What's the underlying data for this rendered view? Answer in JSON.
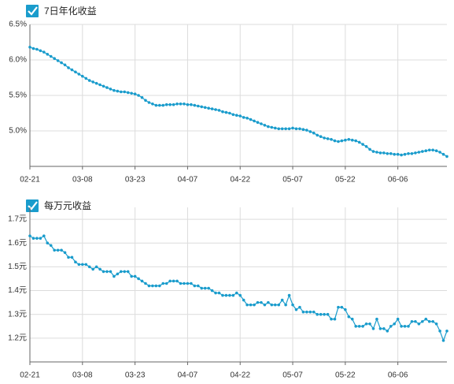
{
  "chart_data": [
    {
      "type": "line",
      "title": "7日年化收益",
      "color": "#1a9ccc",
      "grid": true,
      "categories": [
        "02-21",
        null,
        null,
        null,
        null,
        null,
        null,
        null,
        null,
        null,
        null,
        null,
        null,
        null,
        null,
        "03-08",
        null,
        null,
        null,
        null,
        null,
        null,
        null,
        null,
        null,
        null,
        null,
        null,
        null,
        null,
        "03-23",
        null,
        null,
        null,
        null,
        null,
        null,
        null,
        null,
        null,
        null,
        null,
        null,
        null,
        null,
        "04-07",
        null,
        null,
        null,
        null,
        null,
        null,
        null,
        null,
        null,
        null,
        null,
        null,
        null,
        null,
        "04-22",
        null,
        null,
        null,
        null,
        null,
        null,
        null,
        null,
        null,
        null,
        null,
        null,
        null,
        null,
        "05-07",
        null,
        null,
        null,
        null,
        null,
        null,
        null,
        null,
        null,
        null,
        null,
        null,
        null,
        null,
        "05-22",
        null,
        null,
        null,
        null,
        null,
        null,
        null,
        null,
        null,
        null,
        null,
        null,
        null,
        null,
        "06-06",
        null,
        null,
        null,
        null,
        null,
        null,
        null,
        null,
        null,
        null,
        null,
        null,
        null,
        null
      ],
      "values": [
        6.18,
        6.16,
        6.15,
        6.13,
        6.11,
        6.08,
        6.05,
        6.02,
        5.99,
        5.96,
        5.93,
        5.89,
        5.86,
        5.83,
        5.8,
        5.77,
        5.74,
        5.71,
        5.69,
        5.67,
        5.65,
        5.63,
        5.61,
        5.59,
        5.57,
        5.56,
        5.55,
        5.55,
        5.54,
        5.53,
        5.52,
        5.5,
        5.47,
        5.43,
        5.4,
        5.38,
        5.36,
        5.36,
        5.36,
        5.37,
        5.37,
        5.37,
        5.38,
        5.38,
        5.38,
        5.37,
        5.37,
        5.36,
        5.35,
        5.34,
        5.33,
        5.32,
        5.31,
        5.3,
        5.29,
        5.27,
        5.26,
        5.25,
        5.23,
        5.22,
        5.21,
        5.19,
        5.18,
        5.16,
        5.14,
        5.12,
        5.1,
        5.08,
        5.06,
        5.05,
        5.04,
        5.03,
        5.03,
        5.03,
        5.03,
        5.04,
        5.03,
        5.03,
        5.02,
        5.01,
        4.99,
        4.97,
        4.94,
        4.92,
        4.9,
        4.89,
        4.88,
        4.86,
        4.85,
        4.86,
        4.87,
        4.88,
        4.87,
        4.86,
        4.84,
        4.81,
        4.78,
        4.74,
        4.71,
        4.7,
        4.69,
        4.69,
        4.68,
        4.68,
        4.67,
        4.67,
        4.66,
        4.67,
        4.68,
        4.68,
        4.69,
        4.7,
        4.71,
        4.72,
        4.73,
        4.73,
        4.72,
        4.7,
        4.67,
        4.64
      ],
      "ylim": [
        4.5,
        6.5
      ],
      "yticks": [
        {
          "value": 5.0,
          "label": "5.0%"
        },
        {
          "value": 5.5,
          "label": "5.5%"
        },
        {
          "value": 6.0,
          "label": "6.0%"
        },
        {
          "value": 6.5,
          "label": "6.5%"
        }
      ]
    },
    {
      "type": "line",
      "title": "每万元收益",
      "color": "#1a9ccc",
      "grid": true,
      "categories": [
        "02-21",
        null,
        null,
        null,
        null,
        null,
        null,
        null,
        null,
        null,
        null,
        null,
        null,
        null,
        null,
        "03-08",
        null,
        null,
        null,
        null,
        null,
        null,
        null,
        null,
        null,
        null,
        null,
        null,
        null,
        null,
        "03-23",
        null,
        null,
        null,
        null,
        null,
        null,
        null,
        null,
        null,
        null,
        null,
        null,
        null,
        null,
        "04-07",
        null,
        null,
        null,
        null,
        null,
        null,
        null,
        null,
        null,
        null,
        null,
        null,
        null,
        null,
        "04-22",
        null,
        null,
        null,
        null,
        null,
        null,
        null,
        null,
        null,
        null,
        null,
        null,
        null,
        null,
        "05-07",
        null,
        null,
        null,
        null,
        null,
        null,
        null,
        null,
        null,
        null,
        null,
        null,
        null,
        null,
        "05-22",
        null,
        null,
        null,
        null,
        null,
        null,
        null,
        null,
        null,
        null,
        null,
        null,
        null,
        null,
        "06-06",
        null,
        null,
        null,
        null,
        null,
        null,
        null,
        null,
        null,
        null,
        null,
        null,
        null,
        null
      ],
      "values": [
        1.63,
        1.62,
        1.62,
        1.62,
        1.63,
        1.6,
        1.59,
        1.57,
        1.57,
        1.57,
        1.56,
        1.54,
        1.54,
        1.52,
        1.51,
        1.51,
        1.51,
        1.5,
        1.49,
        1.5,
        1.49,
        1.48,
        1.48,
        1.48,
        1.46,
        1.47,
        1.48,
        1.48,
        1.48,
        1.46,
        1.46,
        1.45,
        1.44,
        1.43,
        1.42,
        1.42,
        1.42,
        1.42,
        1.43,
        1.43,
        1.44,
        1.44,
        1.44,
        1.43,
        1.43,
        1.43,
        1.43,
        1.42,
        1.42,
        1.41,
        1.41,
        1.41,
        1.4,
        1.39,
        1.39,
        1.38,
        1.38,
        1.38,
        1.38,
        1.39,
        1.38,
        1.36,
        1.34,
        1.34,
        1.34,
        1.35,
        1.35,
        1.34,
        1.35,
        1.34,
        1.34,
        1.34,
        1.36,
        1.34,
        1.38,
        1.34,
        1.32,
        1.33,
        1.31,
        1.31,
        1.31,
        1.31,
        1.3,
        1.3,
        1.3,
        1.3,
        1.28,
        1.28,
        1.33,
        1.33,
        1.32,
        1.29,
        1.28,
        1.25,
        1.25,
        1.25,
        1.26,
        1.26,
        1.24,
        1.28,
        1.24,
        1.24,
        1.23,
        1.25,
        1.26,
        1.28,
        1.25,
        1.25,
        1.25,
        1.27,
        1.27,
        1.26,
        1.27,
        1.28,
        1.27,
        1.27,
        1.26,
        1.23,
        1.19,
        1.23
      ],
      "ylim": [
        1.1,
        1.75
      ],
      "yticks": [
        {
          "value": 1.2,
          "label": "1.2元"
        },
        {
          "value": 1.3,
          "label": "1.3元"
        },
        {
          "value": 1.4,
          "label": "1.4元"
        },
        {
          "value": 1.5,
          "label": "1.5元"
        },
        {
          "value": 1.6,
          "label": "1.6元"
        },
        {
          "value": 1.7,
          "label": "1.7元"
        }
      ]
    }
  ]
}
